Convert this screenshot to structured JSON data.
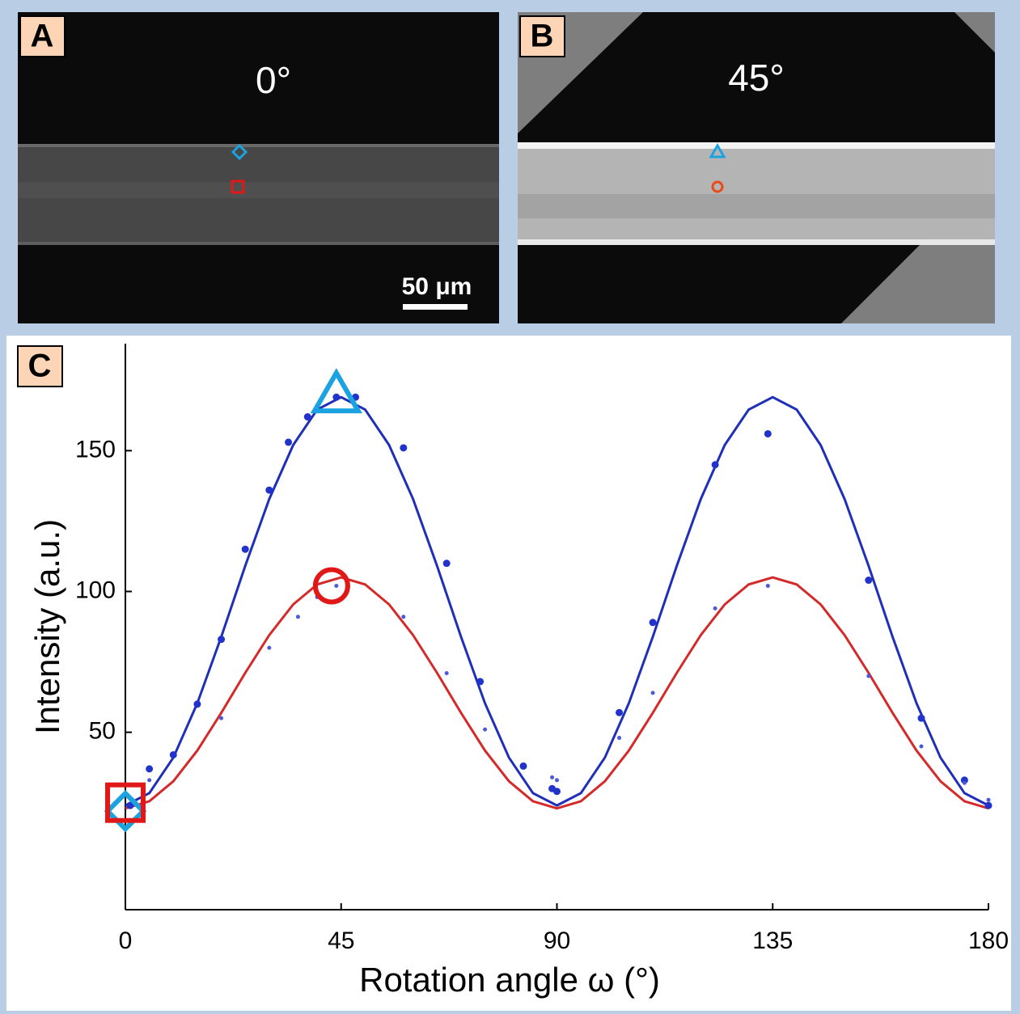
{
  "panels": {
    "a": {
      "letter": "A",
      "angle": "0°",
      "scale_bar": "50 μm"
    },
    "b": {
      "letter": "B",
      "angle": "45°"
    }
  },
  "chart_data": {
    "type": "line",
    "letter": "C",
    "x_label": "Rotation angle ω (°)",
    "y_label": "Intensity (a.u.)",
    "xlim": [
      0,
      180
    ],
    "ylim": [
      -13,
      188
    ],
    "xticks": [
      0,
      45,
      90,
      135,
      180
    ],
    "yticks": [
      50,
      100,
      150
    ],
    "series": [
      {
        "kind": "line",
        "color": "#1f2fb8",
        "x": [
          0,
          5,
          10,
          15,
          20,
          25,
          30,
          35,
          40,
          45,
          50,
          55,
          60,
          65,
          70,
          75,
          80,
          85,
          90,
          95,
          100,
          105,
          110,
          115,
          120,
          125,
          130,
          135,
          140,
          145,
          150,
          155,
          160,
          165,
          170,
          175,
          180
        ],
        "values": [
          24,
          28.4,
          41,
          60.3,
          83.9,
          109.1,
          132.8,
          152,
          164.6,
          169,
          164.6,
          152,
          132.8,
          109.1,
          83.9,
          60.3,
          41,
          28.4,
          24,
          28.4,
          41,
          60.3,
          83.9,
          109.1,
          132.8,
          152,
          164.6,
          169,
          164.6,
          152,
          132.8,
          109.1,
          83.9,
          60.3,
          41,
          28.4,
          24
        ]
      },
      {
        "kind": "line",
        "color": "#d42a2a",
        "x": [
          0,
          5,
          10,
          15,
          20,
          25,
          30,
          35,
          40,
          45,
          50,
          55,
          60,
          65,
          70,
          75,
          80,
          85,
          90,
          95,
          100,
          105,
          110,
          115,
          120,
          125,
          130,
          135,
          140,
          145,
          150,
          155,
          160,
          165,
          170,
          175,
          180
        ],
        "values": [
          23,
          25.5,
          32.6,
          43.5,
          56.9,
          71.1,
          84.5,
          95.4,
          102.5,
          105,
          102.5,
          95.4,
          84.5,
          71.1,
          56.9,
          43.5,
          32.6,
          25.5,
          23,
          25.5,
          32.6,
          43.5,
          56.9,
          71.1,
          84.5,
          95.4,
          102.5,
          105,
          102.5,
          95.4,
          84.5,
          71.1,
          56.9,
          43.5,
          32.6,
          25.5,
          23
        ]
      },
      {
        "kind": "scatter",
        "color": "#2233cc",
        "x": [
          1,
          5,
          10,
          15,
          20,
          25,
          30,
          34,
          38,
          44,
          48,
          58,
          67,
          74,
          83,
          89,
          90,
          103,
          110,
          123,
          134,
          155,
          166,
          175,
          180
        ],
        "values": [
          24,
          37,
          42,
          60,
          83,
          115,
          136,
          153,
          162,
          169,
          169,
          151,
          110,
          68,
          38,
          30,
          29,
          57,
          89,
          145,
          156,
          104,
          55,
          33,
          24
        ]
      },
      {
        "kind": "scatter",
        "color": "#4a5ad8",
        "x": [
          5,
          20,
          30,
          36,
          40,
          44,
          58,
          67,
          75,
          89,
          90,
          103,
          110,
          123,
          134,
          155,
          166,
          175,
          180
        ],
        "values": [
          33,
          55,
          80,
          91,
          98,
          102,
          91,
          71,
          51,
          34,
          33,
          48,
          64,
          94,
          102,
          70,
          45,
          32,
          26
        ]
      }
    ],
    "highlights": [
      {
        "shape": "triangle",
        "x": 44,
        "y": 169,
        "color": "#1aa3e0"
      },
      {
        "shape": "circle",
        "x": 43,
        "y": 102,
        "color": "#e01818"
      },
      {
        "shape": "diamond",
        "x": 0,
        "y": 22,
        "color": "#1aa3e0"
      },
      {
        "shape": "square",
        "x": 0,
        "y": 25,
        "color": "#e01818"
      }
    ]
  }
}
